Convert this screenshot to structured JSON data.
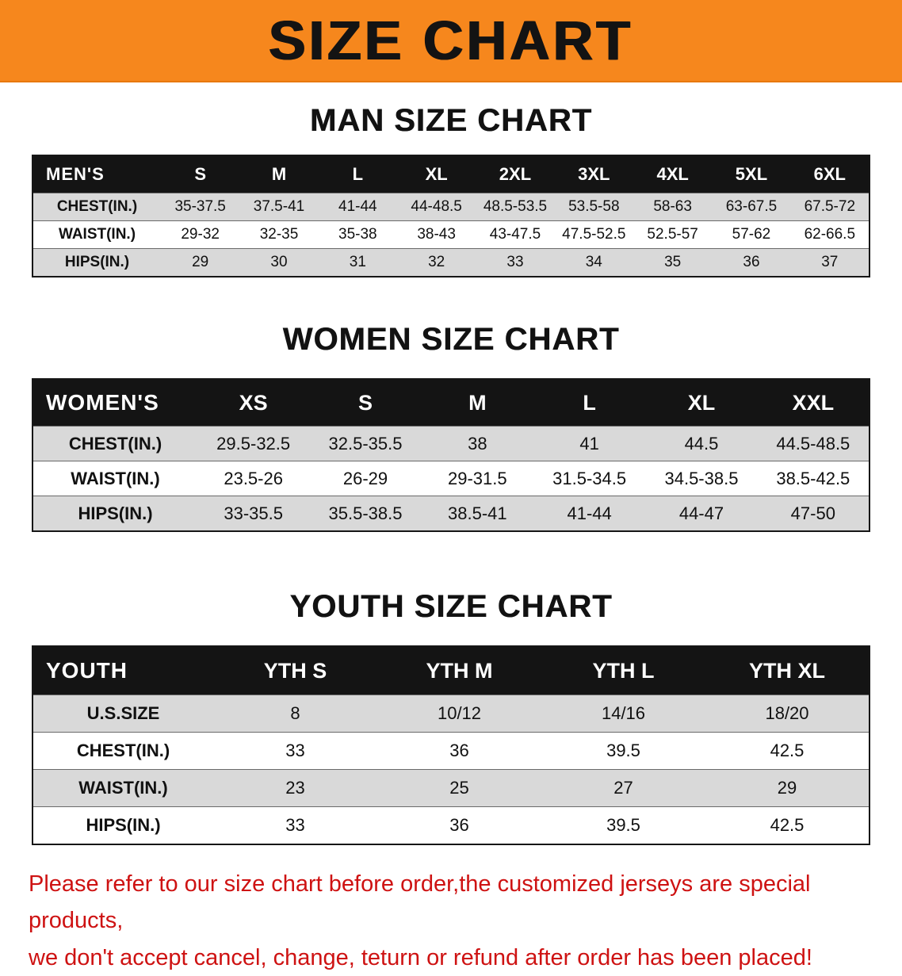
{
  "banner": {
    "title": "SIZE CHART",
    "bg_color": "#f6871d"
  },
  "tables": {
    "men": {
      "heading": "MAN SIZE CHART",
      "corner": "MEN'S",
      "columns": [
        "S",
        "M",
        "L",
        "XL",
        "2XL",
        "3XL",
        "4XL",
        "5XL",
        "6XL"
      ],
      "rows": [
        {
          "label": "CHEST(IN.)",
          "values": [
            "35-37.5",
            "37.5-41",
            "41-44",
            "44-48.5",
            "48.5-53.5",
            "53.5-58",
            "58-63",
            "63-67.5",
            "67.5-72"
          ]
        },
        {
          "label": "WAIST(IN.)",
          "values": [
            "29-32",
            "32-35",
            "35-38",
            "38-43",
            "43-47.5",
            "47.5-52.5",
            "52.5-57",
            "57-62",
            "62-66.5"
          ]
        },
        {
          "label": "HIPS(IN.)",
          "values": [
            "29",
            "30",
            "31",
            "32",
            "33",
            "34",
            "35",
            "36",
            "37"
          ]
        }
      ]
    },
    "women": {
      "heading": "WOMEN SIZE CHART",
      "corner": "WOMEN'S",
      "columns": [
        "XS",
        "S",
        "M",
        "L",
        "XL",
        "XXL"
      ],
      "rows": [
        {
          "label": "CHEST(IN.)",
          "values": [
            "29.5-32.5",
            "32.5-35.5",
            "38",
            "41",
            "44.5",
            "44.5-48.5"
          ]
        },
        {
          "label": "WAIST(IN.)",
          "values": [
            "23.5-26",
            "26-29",
            "29-31.5",
            "31.5-34.5",
            "34.5-38.5",
            "38.5-42.5"
          ]
        },
        {
          "label": "HIPS(IN.)",
          "values": [
            "33-35.5",
            "35.5-38.5",
            "38.5-41",
            "41-44",
            "44-47",
            "47-50"
          ]
        }
      ]
    },
    "youth": {
      "heading": "YOUTH SIZE CHART",
      "corner": "YOUTH",
      "columns": [
        "YTH S",
        "YTH M",
        "YTH L",
        "YTH XL"
      ],
      "rows": [
        {
          "label": "U.S.SIZE",
          "values": [
            "8",
            "10/12",
            "14/16",
            "18/20"
          ]
        },
        {
          "label": "CHEST(IN.)",
          "values": [
            "33",
            "36",
            "39.5",
            "42.5"
          ]
        },
        {
          "label": "WAIST(IN.)",
          "values": [
            "23",
            "25",
            "27",
            "29"
          ]
        },
        {
          "label": "HIPS(IN.)",
          "values": [
            "33",
            "36",
            "39.5",
            "42.5"
          ]
        }
      ]
    }
  },
  "footer": {
    "line1": "Please refer to our size chart before order,the customized jerseys are special products,",
    "line2": "we don't accept cancel, change, teturn or refund after order has been placed!",
    "text_color": "#ce1212"
  }
}
